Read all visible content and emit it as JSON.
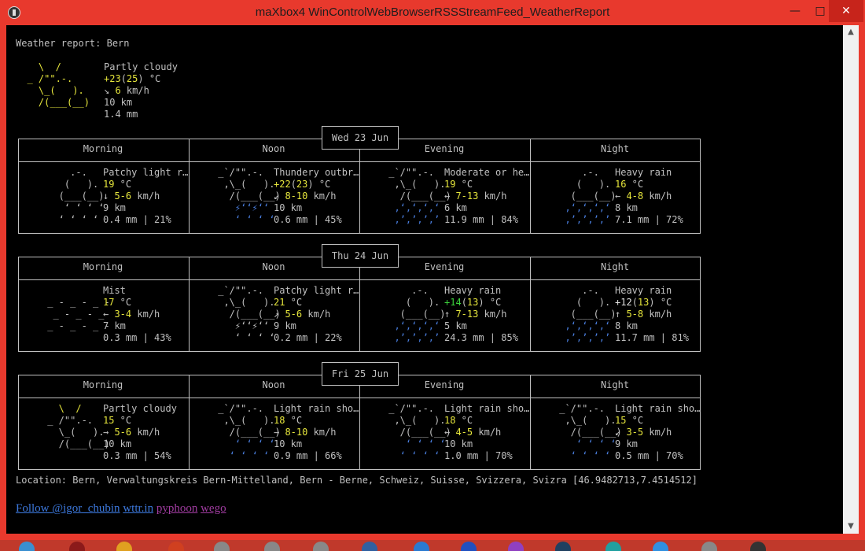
{
  "window": {
    "title": "maXbox4 WinControlWebBrowserRSSStreamFeed_WeatherReport"
  },
  "report": {
    "heading": "Weather report: Bern",
    "current": {
      "art": [
        "    \\  /      ",
        "  _ /\"\".-.    ",
        "    \\_(   ).  ",
        "    /(___(__) "
      ],
      "condition": "Partly cloudy",
      "temp": "+23",
      "feels": "25",
      "unit": " °C",
      "wind_dir": "↘ ",
      "wind": "6",
      "wind_unit": " km/h",
      "visibility": "10 km",
      "precip": "1.4 mm"
    },
    "columns": [
      "Morning",
      "Noon",
      "Evening",
      "Night"
    ],
    "days": [
      {
        "date": "Wed 23 Jun",
        "slots": [
          {
            "art": [
              "     .-.     ",
              "    (   ).   ",
              "   (___(__)  ",
              "    ‘ ‘ ‘ ‘  ",
              "   ‘ ‘ ‘ ‘   "
            ],
            "condition": "Patchy light r…",
            "temp": "19",
            "temp_extra": "",
            "temp_color": "y",
            "wind_dir": "↓ ",
            "wind": "5-6",
            "visibility": "9 km",
            "precip": "0.4 mm | 21%"
          },
          {
            "art": [
              " _`/\"\".-.    ",
              "  ,\\_(   ).  ",
              "   /(___(__) ",
              "    ⚡‘‘⚡‘‘  ",
              "    ‘ ‘ ‘ ‘  "
            ],
            "condition": "Thundery outbr…",
            "temp": "+22",
            "temp_extra": "23",
            "temp_color": "y",
            "wind_dir": "↙ ",
            "wind": "8-10",
            "visibility": "10 km",
            "precip": "0.6 mm | 45%"
          },
          {
            "art": [
              " _`/\"\".-.    ",
              "  ,\\_(   ).  ",
              "   /(___(__) ",
              "  ‚‘‚‘‚‘‚‘   ",
              "  ‚’‚’‚’‚’   "
            ],
            "condition": "Moderate or he…",
            "temp": "19",
            "temp_extra": "",
            "temp_color": "y",
            "wind_dir": "← ",
            "wind": "7-13",
            "visibility": "6 km",
            "precip": "11.9 mm | 84%"
          },
          {
            "art": [
              "     .-.     ",
              "    (   ).   ",
              "   (___(__)  ",
              "  ‚‘‚‘‚‘‚‘   ",
              "  ‚’‚’‚’‚’   "
            ],
            "condition": "Heavy rain",
            "temp": "16",
            "temp_extra": "",
            "temp_color": "y",
            "wind_dir": "← ",
            "wind": "4-8",
            "visibility": "8 km",
            "precip": "7.1 mm | 72%"
          }
        ]
      },
      {
        "date": "Thu 24 Jun",
        "slots": [
          {
            "art": [
              "             ",
              " _ - _ - _ -  ",
              "  _ - _ - _   ",
              " _ - _ - _ -  ",
              "             "
            ],
            "condition": "Mist",
            "temp": "17",
            "temp_extra": "",
            "temp_color": "y",
            "wind_dir": "← ",
            "wind": "3-4",
            "visibility": "7 km",
            "precip": "0.3 mm | 43%"
          },
          {
            "art": [
              " _`/\"\".-.    ",
              "  ,\\_(   ).  ",
              "   /(___(__) ",
              "    ⚡‘‘⚡‘‘  ",
              "    ‘ ‘ ‘ ‘  "
            ],
            "condition": "Patchy light r…",
            "temp": "21",
            "temp_extra": "",
            "temp_color": "y",
            "wind_dir": "↗ ",
            "wind": "5-6",
            "visibility": "9 km",
            "precip": "0.2 mm | 22%"
          },
          {
            "art": [
              "     .-.     ",
              "    (   ).   ",
              "   (___(__)  ",
              "  ‚‘‚‘‚‘‚‘   ",
              "  ‚’‚’‚’‚’   "
            ],
            "condition": "Heavy rain",
            "temp": "+14",
            "temp_extra": "13",
            "temp_color": "g",
            "wind_dir": "↑ ",
            "wind": "7-13",
            "visibility": "5 km",
            "precip": "24.3 mm | 85%"
          },
          {
            "art": [
              "     .-.     ",
              "    (   ).   ",
              "   (___(__)  ",
              "  ‚‘‚‘‚‘‚‘   ",
              "  ‚’‚’‚’‚’   "
            ],
            "condition": "Heavy rain",
            "temp": "+12",
            "temp_extra": "13",
            "temp_color": "w",
            "wind_dir": "↑ ",
            "wind": "5-8",
            "visibility": "8 km",
            "precip": "11.7 mm | 81%"
          }
        ]
      },
      {
        "date": "Fri 25 Jun",
        "slots": [
          {
            "art": [
              "   \\  /      ",
              " _ /\"\".-.    ",
              "   \\_(   ).  ",
              "   /(___(__) ",
              "             "
            ],
            "condition": "Partly cloudy",
            "temp": "15",
            "temp_extra": "",
            "temp_color": "y",
            "wind_dir": "→ ",
            "wind": "5-6",
            "visibility": "10 km",
            "precip": "0.3 mm | 54%"
          },
          {
            "art": [
              " _`/\"\".-.    ",
              "  ,\\_(   ).  ",
              "   /(___(__) ",
              "    ‘ ‘ ‘ ‘  ",
              "   ‘ ‘ ‘ ‘   "
            ],
            "condition": "Light rain sho…",
            "temp": "18",
            "temp_extra": "",
            "temp_color": "y",
            "wind_dir": "→ ",
            "wind": "8-10",
            "visibility": "10 km",
            "precip": "0.9 mm | 66%"
          },
          {
            "art": [
              " _`/\"\".-.    ",
              "  ,\\_(   ).  ",
              "   /(___(__) ",
              "    ‘ ‘ ‘ ‘  ",
              "   ‘ ‘ ‘ ‘   "
            ],
            "condition": "Light rain sho…",
            "temp": "18",
            "temp_extra": "",
            "temp_color": "y",
            "wind_dir": "← ",
            "wind": "4-5",
            "visibility": "10 km",
            "precip": "1.0 mm | 70%"
          },
          {
            "art": [
              " _`/\"\".-.    ",
              "  ,\\_(   ).  ",
              "   /(___(__) ",
              "    ‘ ‘ ‘ ‘  ",
              "   ‘ ‘ ‘ ‘   "
            ],
            "condition": "Light rain sho…",
            "temp": "15",
            "temp_extra": "",
            "temp_color": "y",
            "wind_dir": "↙ ",
            "wind": "3-5",
            "visibility": "9 km",
            "precip": "0.5 mm | 70%"
          }
        ]
      }
    ],
    "location": "Location: Bern, Verwaltungskreis Bern-Mittelland, Bern - Berne, Schweiz, Suisse, Svizzera, Svizra [46.9482713,7.4514512]",
    "links": [
      {
        "label": "Follow @igor_chubin",
        "visited": false
      },
      {
        "label": "wttr.in",
        "visited": false
      },
      {
        "label": "pyphoon",
        "visited": true
      },
      {
        "label": "wego",
        "visited": true
      }
    ]
  },
  "colors": {
    "titlebar": "#e8392d",
    "close": "#c7241b",
    "temp_yellow": "#e6e63c",
    "temp_green": "#3cd23c",
    "rain": "#4a7fe0"
  }
}
